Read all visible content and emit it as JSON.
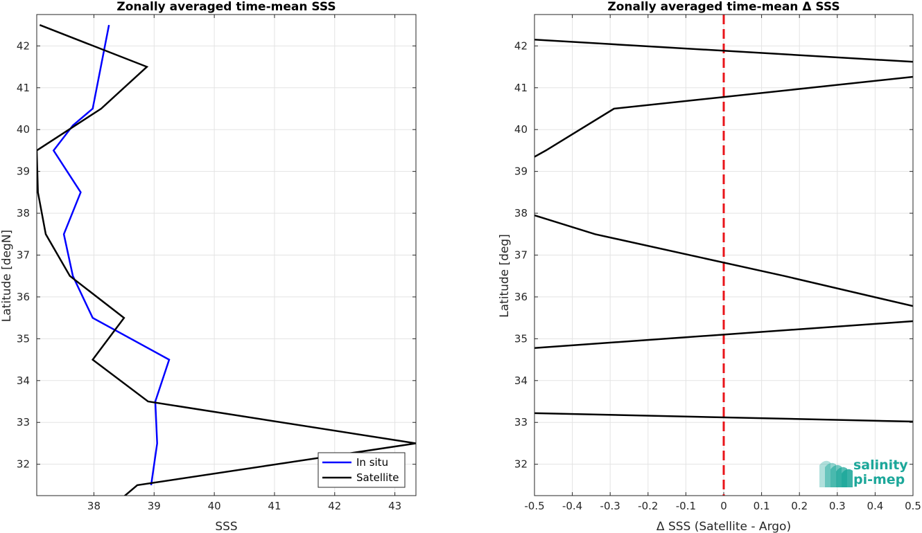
{
  "chart_data": [
    {
      "type": "line",
      "title": "Zonally averaged time-mean SSS",
      "xlabel": "SSS",
      "ylabel": "Latitude [degN]",
      "xlim": [
        37.05,
        43.35
      ],
      "ylim": [
        31.25,
        42.75
      ],
      "xticks": [
        "38",
        "39",
        "40",
        "41",
        "42",
        "43"
      ],
      "yticks": [
        "32",
        "33",
        "34",
        "35",
        "36",
        "37",
        "38",
        "39",
        "40",
        "41",
        "42"
      ],
      "grid": true,
      "legend_position": "bottom-right",
      "series": [
        {
          "name": "In situ",
          "color": "#0000ff",
          "x": [
            38.95,
            39.05,
            39.02,
            39.25,
            37.98,
            37.65,
            37.5,
            37.78,
            37.33,
            37.65,
            37.98,
            38.25
          ],
          "y": [
            31.5,
            32.5,
            33.5,
            34.5,
            35.5,
            36.5,
            37.5,
            38.5,
            39.5,
            40.1,
            40.5,
            42.5
          ]
        },
        {
          "name": "Satellite",
          "color": "#000000",
          "x": [
            38.45,
            38.72,
            43.35,
            38.9,
            37.98,
            38.5,
            37.6,
            37.2,
            37.07,
            37.05,
            38.12,
            38.88,
            37.1
          ],
          "y": [
            31.17,
            31.5,
            32.5,
            33.5,
            34.5,
            35.5,
            36.5,
            37.5,
            38.5,
            39.5,
            40.5,
            41.5,
            42.5
          ]
        }
      ]
    },
    {
      "type": "line",
      "title": "Zonally averaged time-mean Δ SSS",
      "xlabel": "Δ SSS (Satellite - Argo)",
      "ylabel": "Latitude [deg]",
      "xlim": [
        -0.5,
        0.5
      ],
      "ylim": [
        31.25,
        42.75
      ],
      "xticks": [
        "-0.5",
        "-0.4",
        "-0.3",
        "-0.2",
        "-0.1",
        "0",
        "0.1",
        "0.2",
        "0.3",
        "0.4",
        "0.5"
      ],
      "yticks": [
        "32",
        "33",
        "34",
        "35",
        "36",
        "37",
        "38",
        "39",
        "40",
        "41",
        "42"
      ],
      "grid": true,
      "reference_line": {
        "x": 0,
        "color": "#e8141a",
        "style": "dashed"
      },
      "series": [
        {
          "color": "#000000",
          "x": [
            -0.5,
            0.5
          ],
          "y": [
            33.22,
            33.02
          ]
        },
        {
          "color": "#000000",
          "x": [
            -0.5,
            0.5
          ],
          "y": [
            34.78,
            35.42
          ]
        },
        {
          "color": "#000000",
          "x": [
            -0.5,
            -0.34,
            0.16,
            0.5
          ],
          "y": [
            37.95,
            37.5,
            36.5,
            35.78
          ]
        },
        {
          "color": "#000000",
          "x": [
            -0.5,
            -0.47,
            -0.29,
            0.5
          ],
          "y": [
            39.35,
            39.5,
            40.5,
            41.26
          ]
        },
        {
          "color": "#000000",
          "x": [
            -0.5,
            0.5
          ],
          "y": [
            42.15,
            41.62
          ]
        }
      ]
    }
  ],
  "logo": {
    "line1": "salinity",
    "line2": "pi-mep",
    "color": "#1ca79a"
  }
}
